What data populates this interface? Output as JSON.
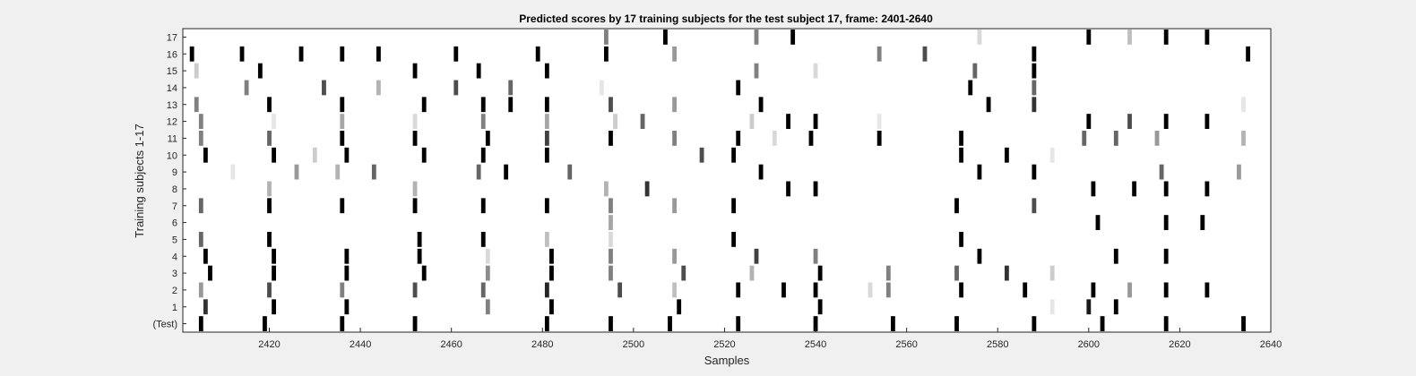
{
  "chart_data": {
    "type": "heatmap",
    "title": "Predicted scores by 17 training subjects for the test subject 17, frame: 2401-2640",
    "xlabel": "Samples",
    "ylabel": "Training subjects 1-17",
    "xlim": [
      2401,
      2640
    ],
    "xticks": [
      2420,
      2440,
      2460,
      2480,
      2500,
      2520,
      2540,
      2560,
      2580,
      2600,
      2620,
      2640
    ],
    "rows": [
      "(Test)",
      "1",
      "2",
      "3",
      "4",
      "5",
      "6",
      "7",
      "8",
      "9",
      "10",
      "11",
      "12",
      "13",
      "14",
      "15",
      "16",
      "17"
    ],
    "colormap": "gray",
    "background_color": "#ffffff",
    "cells": [
      {
        "row": "(Test)",
        "points": [
          [
            2405,
            1
          ],
          [
            2419,
            1
          ],
          [
            2436,
            1
          ],
          [
            2452,
            1
          ],
          [
            2481,
            1
          ],
          [
            2495,
            1
          ],
          [
            2508,
            1
          ],
          [
            2523,
            1
          ],
          [
            2540,
            1
          ],
          [
            2557,
            1
          ],
          [
            2571,
            1
          ],
          [
            2588,
            1
          ],
          [
            2603,
            1
          ],
          [
            2617,
            1
          ],
          [
            2634,
            1
          ]
        ]
      },
      {
        "row": "1",
        "points": [
          [
            2406,
            0.8
          ],
          [
            2421,
            1
          ],
          [
            2437,
            1
          ],
          [
            2468,
            0.5
          ],
          [
            2482,
            1
          ],
          [
            2510,
            1
          ],
          [
            2541,
            1
          ],
          [
            2592,
            0.1
          ],
          [
            2600,
            0.9
          ],
          [
            2606,
            1
          ]
        ]
      },
      {
        "row": "2",
        "points": [
          [
            2405,
            0.4
          ],
          [
            2420,
            0.7
          ],
          [
            2436,
            0.5
          ],
          [
            2452,
            0.7
          ],
          [
            2467,
            0.6
          ],
          [
            2481,
            0.85
          ],
          [
            2497,
            0.7
          ],
          [
            2509,
            0.25
          ],
          [
            2523,
            1
          ],
          [
            2533,
            1
          ],
          [
            2540,
            1
          ],
          [
            2552,
            0.15
          ],
          [
            2556,
            0.5
          ],
          [
            2572,
            1
          ],
          [
            2586,
            1
          ],
          [
            2601,
            1
          ],
          [
            2609,
            0.4
          ],
          [
            2617,
            1
          ],
          [
            2626,
            1
          ]
        ]
      },
      {
        "row": "3",
        "points": [
          [
            2407,
            1
          ],
          [
            2421,
            1
          ],
          [
            2437,
            1
          ],
          [
            2454,
            1
          ],
          [
            2468,
            0.45
          ],
          [
            2482,
            1
          ],
          [
            2495,
            0.5
          ],
          [
            2511,
            0.7
          ],
          [
            2526,
            0.3
          ],
          [
            2541,
            1
          ],
          [
            2556,
            0.5
          ],
          [
            2571,
            0.6
          ],
          [
            2582,
            0.8
          ],
          [
            2592,
            0.2
          ]
        ]
      },
      {
        "row": "4",
        "points": [
          [
            2406,
            1
          ],
          [
            2421,
            1
          ],
          [
            2437,
            1
          ],
          [
            2453,
            1
          ],
          [
            2468,
            0.15
          ],
          [
            2482,
            1
          ],
          [
            2495,
            0.5
          ],
          [
            2509,
            0.4
          ],
          [
            2527,
            0.75
          ],
          [
            2540,
            0.5
          ],
          [
            2576,
            1
          ],
          [
            2606,
            1
          ],
          [
            2617,
            1
          ]
        ]
      },
      {
        "row": "5",
        "points": [
          [
            2405,
            0.6
          ],
          [
            2420,
            1
          ],
          [
            2453,
            1
          ],
          [
            2467,
            1
          ],
          [
            2481,
            0.25
          ],
          [
            2495,
            0.15
          ],
          [
            2522,
            1
          ],
          [
            2572,
            1
          ]
        ]
      },
      {
        "row": "6",
        "points": [
          [
            2495,
            0.35
          ],
          [
            2602,
            1
          ],
          [
            2617,
            1
          ],
          [
            2625,
            1
          ]
        ]
      },
      {
        "row": "7",
        "points": [
          [
            2405,
            0.6
          ],
          [
            2420,
            1
          ],
          [
            2436,
            1
          ],
          [
            2452,
            1
          ],
          [
            2467,
            1
          ],
          [
            2481,
            1
          ],
          [
            2495,
            0.5
          ],
          [
            2509,
            0.4
          ],
          [
            2522,
            1
          ],
          [
            2571,
            1
          ],
          [
            2588,
            0.7
          ]
        ]
      },
      {
        "row": "8",
        "points": [
          [
            2420,
            0.3
          ],
          [
            2452,
            0.3
          ],
          [
            2494,
            0.3
          ],
          [
            2503,
            0.8
          ],
          [
            2534,
            1
          ],
          [
            2540,
            1
          ],
          [
            2601,
            1
          ],
          [
            2610,
            1
          ],
          [
            2617,
            1
          ],
          [
            2626,
            1
          ]
        ]
      },
      {
        "row": "9",
        "points": [
          [
            2412,
            0.1
          ],
          [
            2426,
            0.4
          ],
          [
            2435,
            0.3
          ],
          [
            2443,
            0.6
          ],
          [
            2466,
            0.6
          ],
          [
            2472,
            1
          ],
          [
            2486,
            0.6
          ],
          [
            2528,
            1
          ],
          [
            2576,
            1
          ],
          [
            2588,
            1
          ],
          [
            2616,
            0.6
          ],
          [
            2633,
            0.4
          ]
        ]
      },
      {
        "row": "10",
        "points": [
          [
            2406,
            1
          ],
          [
            2421,
            1
          ],
          [
            2430,
            0.2
          ],
          [
            2437,
            1
          ],
          [
            2454,
            1
          ],
          [
            2467,
            1
          ],
          [
            2481,
            1
          ],
          [
            2515,
            0.7
          ],
          [
            2522,
            1
          ],
          [
            2572,
            1
          ],
          [
            2582,
            1
          ],
          [
            2592,
            0.1
          ]
        ]
      },
      {
        "row": "11",
        "points": [
          [
            2405,
            0.5
          ],
          [
            2420,
            0.6
          ],
          [
            2436,
            1
          ],
          [
            2452,
            1
          ],
          [
            2468,
            1
          ],
          [
            2481,
            0.75
          ],
          [
            2495,
            1
          ],
          [
            2509,
            0.5
          ],
          [
            2523,
            1
          ],
          [
            2531,
            0.15
          ],
          [
            2539,
            1
          ],
          [
            2554,
            1
          ],
          [
            2572,
            1
          ],
          [
            2599,
            0.6
          ],
          [
            2606,
            0.6
          ],
          [
            2615,
            0.4
          ],
          [
            2634,
            0.3
          ]
        ]
      },
      {
        "row": "12",
        "points": [
          [
            2405,
            0.5
          ],
          [
            2421,
            0.1
          ],
          [
            2436,
            0.35
          ],
          [
            2452,
            0.15
          ],
          [
            2467,
            0.5
          ],
          [
            2481,
            0.35
          ],
          [
            2496,
            0.2
          ],
          [
            2502,
            0.6
          ],
          [
            2526,
            0.2
          ],
          [
            2534,
            1
          ],
          [
            2540,
            1
          ],
          [
            2554,
            0.1
          ],
          [
            2600,
            1
          ],
          [
            2609,
            0.7
          ],
          [
            2617,
            1
          ],
          [
            2626,
            1
          ]
        ]
      },
      {
        "row": "13",
        "points": [
          [
            2404,
            0.5
          ],
          [
            2420,
            1
          ],
          [
            2436,
            1
          ],
          [
            2454,
            1
          ],
          [
            2467,
            1
          ],
          [
            2473,
            1
          ],
          [
            2481,
            1
          ],
          [
            2495,
            0.7
          ],
          [
            2509,
            0.4
          ],
          [
            2528,
            1
          ],
          [
            2578,
            1
          ],
          [
            2588,
            0.8
          ],
          [
            2634,
            0.1
          ]
        ]
      },
      {
        "row": "14",
        "points": [
          [
            2415,
            0.5
          ],
          [
            2432,
            0.7
          ],
          [
            2444,
            0.3
          ],
          [
            2461,
            0.7
          ],
          [
            2473,
            0.6
          ],
          [
            2493,
            0.1
          ],
          [
            2523,
            1
          ],
          [
            2574,
            1
          ],
          [
            2588,
            0.6
          ]
        ]
      },
      {
        "row": "15",
        "points": [
          [
            2404,
            0.2
          ],
          [
            2418,
            1
          ],
          [
            2452,
            1
          ],
          [
            2466,
            1
          ],
          [
            2481,
            1
          ],
          [
            2527,
            0.5
          ],
          [
            2540,
            0.15
          ],
          [
            2575,
            0.6
          ],
          [
            2588,
            1
          ]
        ]
      },
      {
        "row": "16",
        "points": [
          [
            2403,
            1
          ],
          [
            2414,
            1
          ],
          [
            2427,
            1
          ],
          [
            2436,
            1
          ],
          [
            2444,
            1
          ],
          [
            2461,
            1
          ],
          [
            2479,
            1
          ],
          [
            2494,
            1
          ],
          [
            2509,
            0.4
          ],
          [
            2554,
            0.5
          ],
          [
            2564,
            0.7
          ],
          [
            2588,
            1
          ],
          [
            2635,
            1
          ]
        ]
      },
      {
        "row": "17",
        "points": [
          [
            2494,
            0.5
          ],
          [
            2507,
            1
          ],
          [
            2527,
            0.5
          ],
          [
            2535,
            1
          ],
          [
            2576,
            0.15
          ],
          [
            2600,
            1
          ],
          [
            2609,
            0.25
          ],
          [
            2617,
            1
          ],
          [
            2626,
            1
          ]
        ]
      }
    ]
  }
}
